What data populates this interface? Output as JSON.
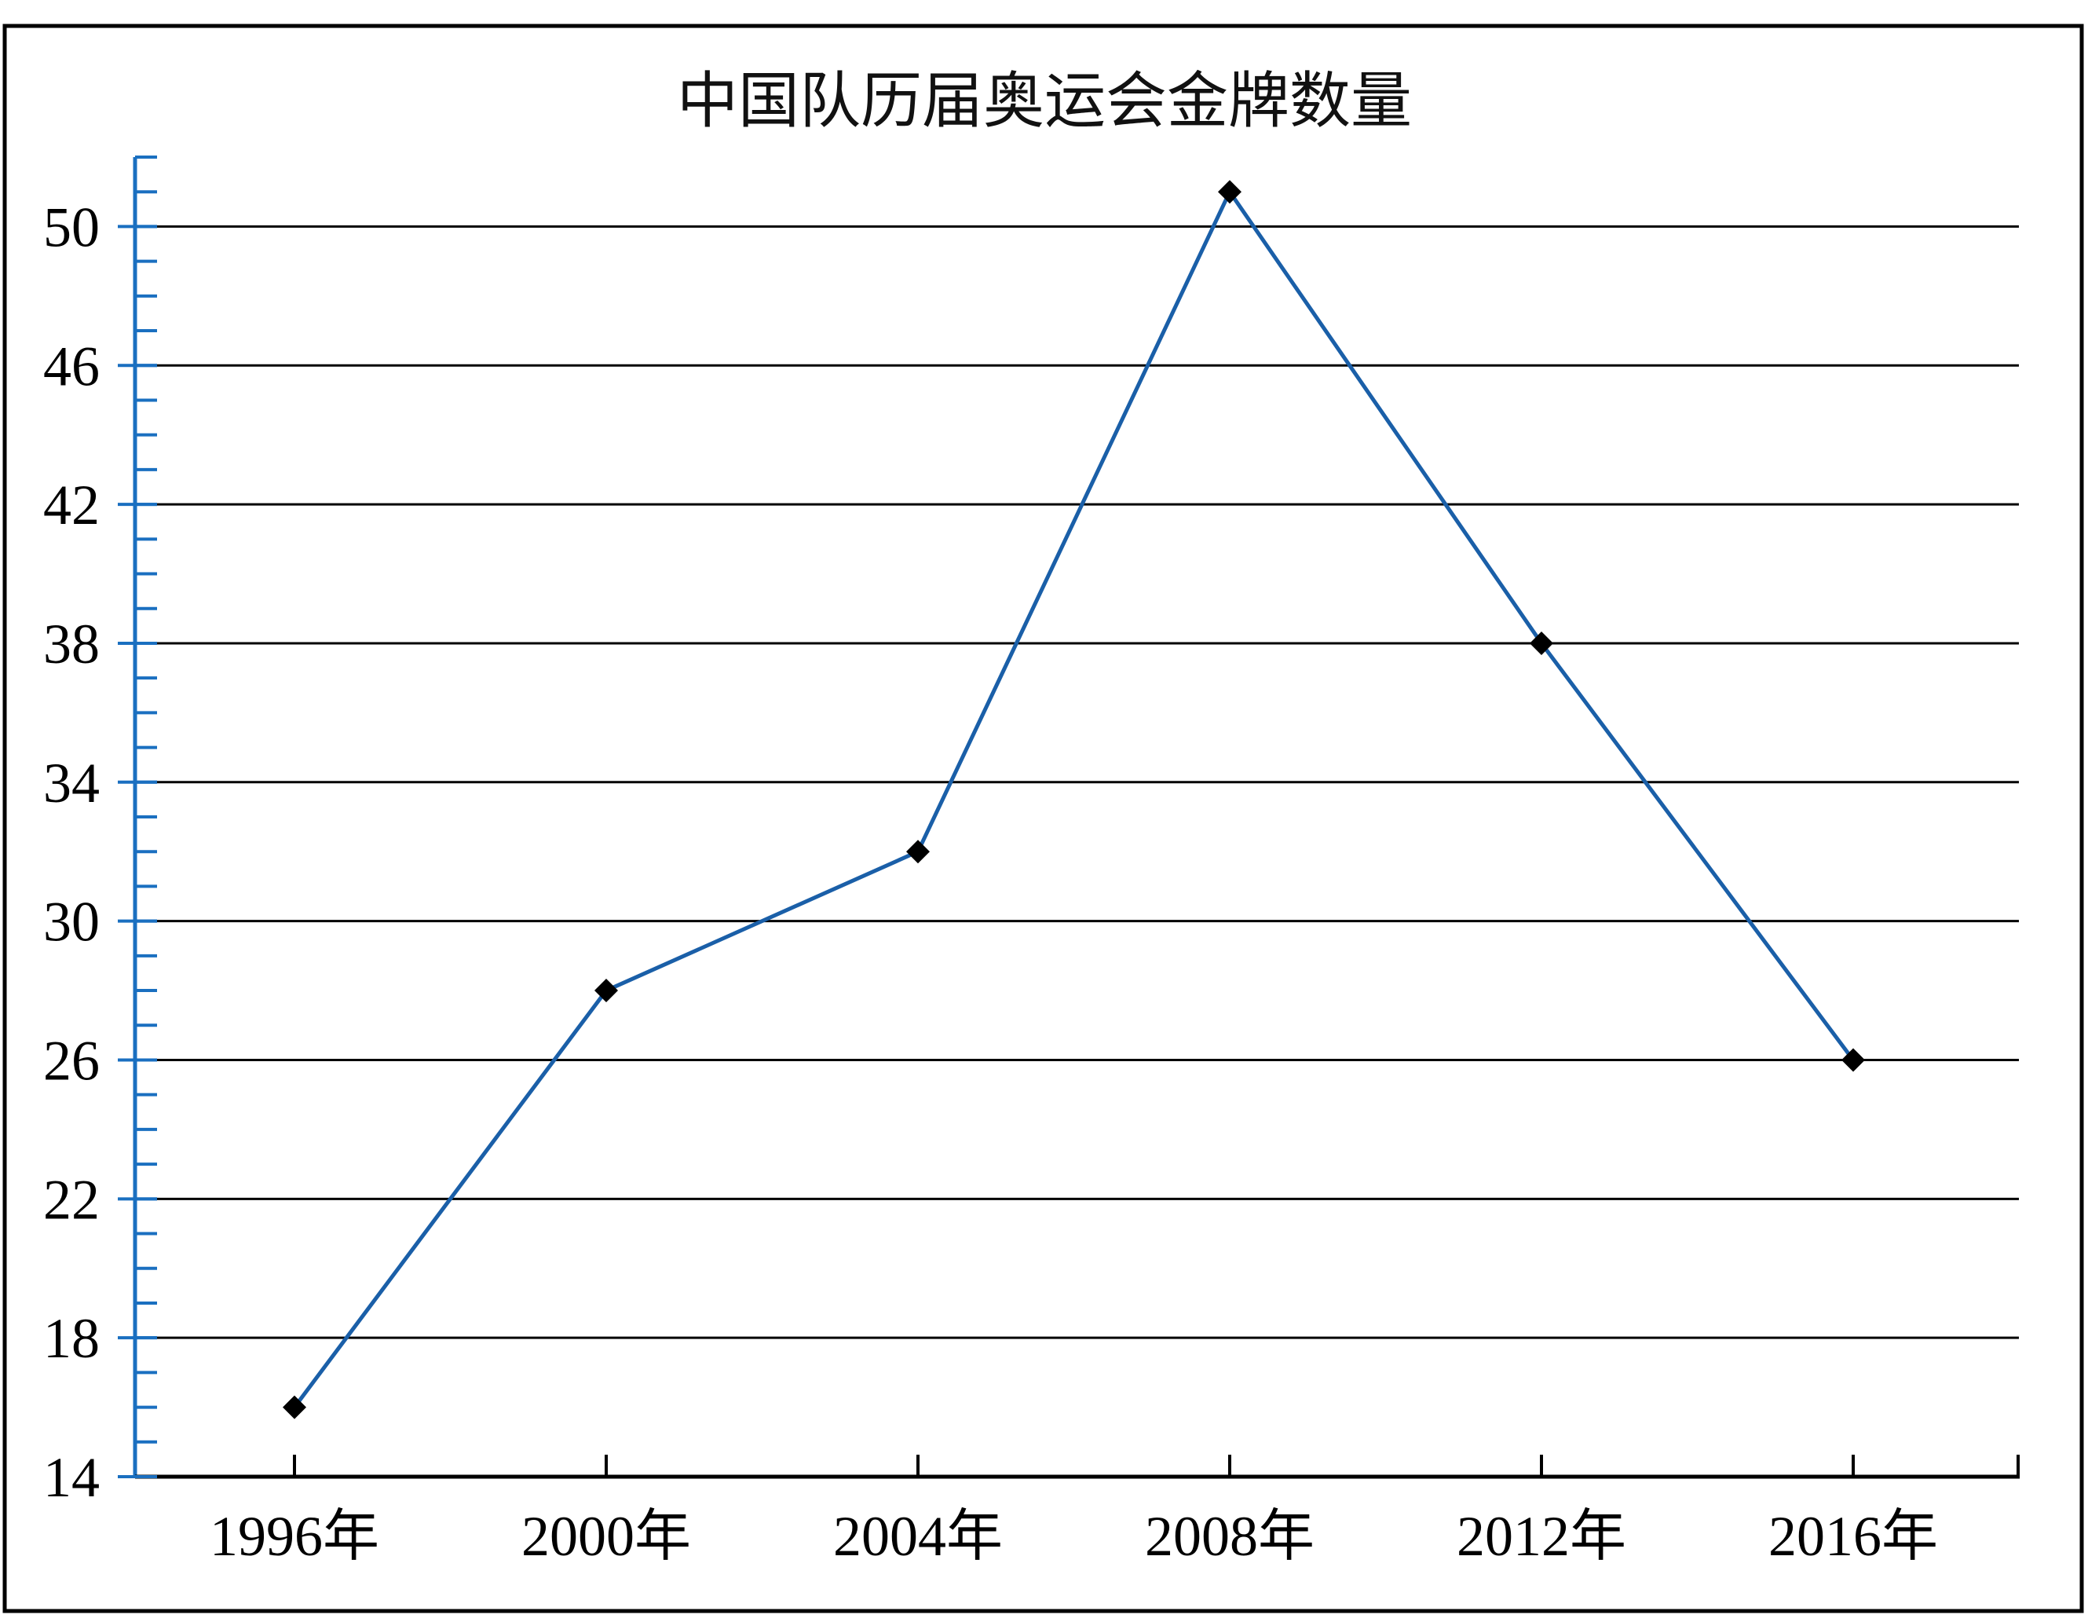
{
  "chart_data": {
    "type": "line",
    "title": "中国队历届奥运会金牌数量",
    "xlabel": "",
    "ylabel": "",
    "categories": [
      "1996年",
      "2000年",
      "2004年",
      "2008年",
      "2012年",
      "2016年"
    ],
    "series": [
      {
        "values": [
          16,
          28,
          32,
          51,
          38,
          26
        ]
      }
    ],
    "y_ticks": [
      14,
      18,
      22,
      26,
      30,
      34,
      38,
      42,
      46,
      50
    ],
    "ylim": [
      14,
      52
    ],
    "y_minor_step": 1,
    "grid": true,
    "legend": "none",
    "marker": "diamond"
  },
  "colors": {
    "line": "#1a5fa8",
    "axis": "#1a6fc0",
    "grid": "#000000",
    "marker": "#000000",
    "frame": "#000000"
  }
}
